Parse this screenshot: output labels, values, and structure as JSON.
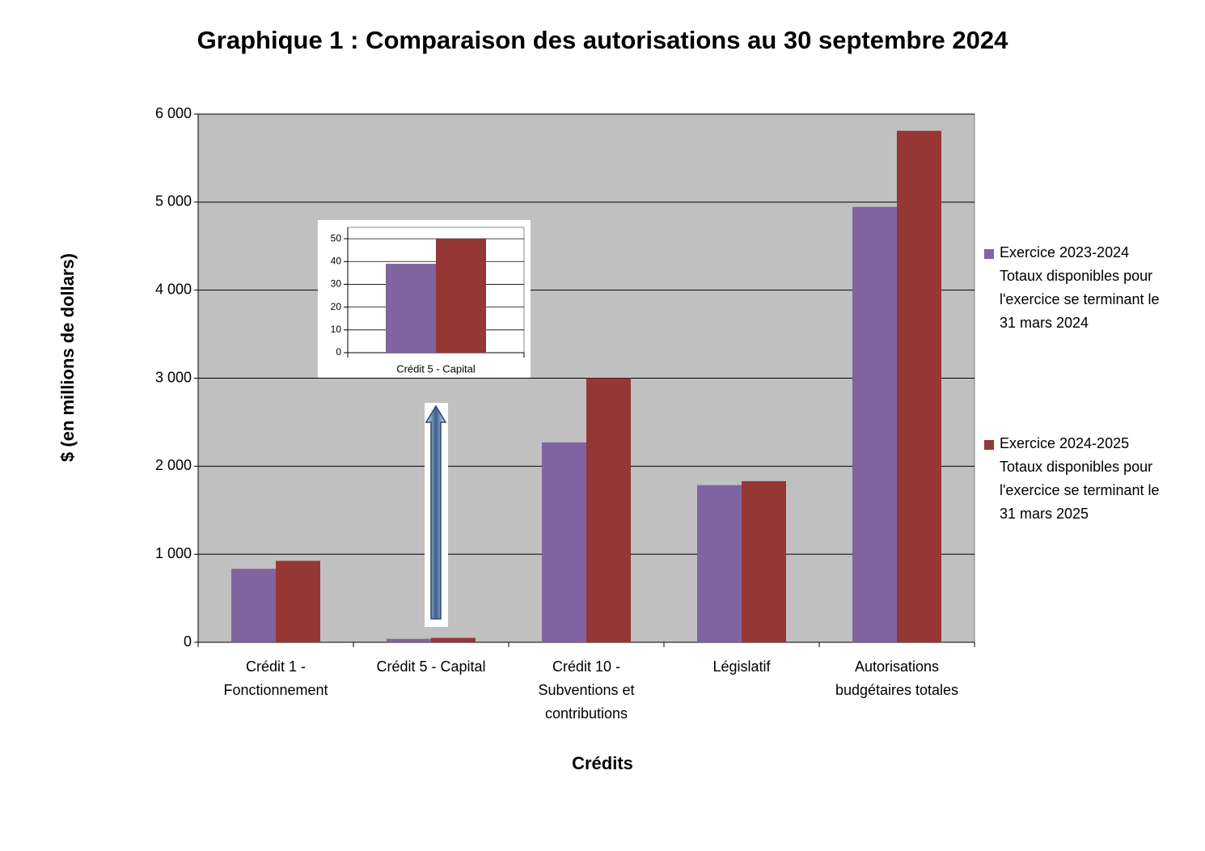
{
  "chart_data": [
    {
      "type": "bar",
      "title": "Graphique 1 : Comparaison des autorisations au 30 septembre 2024",
      "x_label": "Crédits",
      "y_label": "$ (en millions de dollars)",
      "categories": [
        "Crédit 1 - Fonctionnement",
        "Crédit 5 - Capital",
        "Crédit 10 - Subventions et contributions",
        "Législatif",
        "Autorisations budgétaires totales"
      ],
      "series": [
        {
          "name": "Exercice 2023-2024 Totaux disponibles pour l'exercice se terminant le 31 mars 2024",
          "color": "#8064a2",
          "values": [
            835,
            39,
            2270,
            1785,
            4945
          ]
        },
        {
          "name": "Exercice 2024-2025 Totaux disponibles pour l'exercice se terminant le 31 mars 2025",
          "color": "#953735",
          "values": [
            925,
            50,
            3000,
            1830,
            5810
          ]
        }
      ],
      "ylim": [
        0,
        6000
      ],
      "yticks": [
        0,
        {
          "value": 1000,
          "label": "1 000"
        },
        {
          "value": 2000,
          "label": "2 000"
        },
        {
          "value": 3000,
          "label": "3 000"
        },
        {
          "value": 4000,
          "label": "4 000"
        },
        {
          "value": 5000,
          "label": "5 000"
        },
        {
          "value": 6000,
          "label": "6 000"
        }
      ],
      "grid": true,
      "legend": "right"
    },
    {
      "type": "bar",
      "categories": [
        "Crédit 5 - Capital"
      ],
      "series": [
        {
          "color": "#8064a2",
          "values": [
            39
          ]
        },
        {
          "color": "#953735",
          "values": [
            50
          ]
        }
      ],
      "ylim": [
        0,
        55
      ],
      "yticks": [
        0,
        10,
        20,
        30,
        40,
        50
      ],
      "grid": true
    }
  ]
}
